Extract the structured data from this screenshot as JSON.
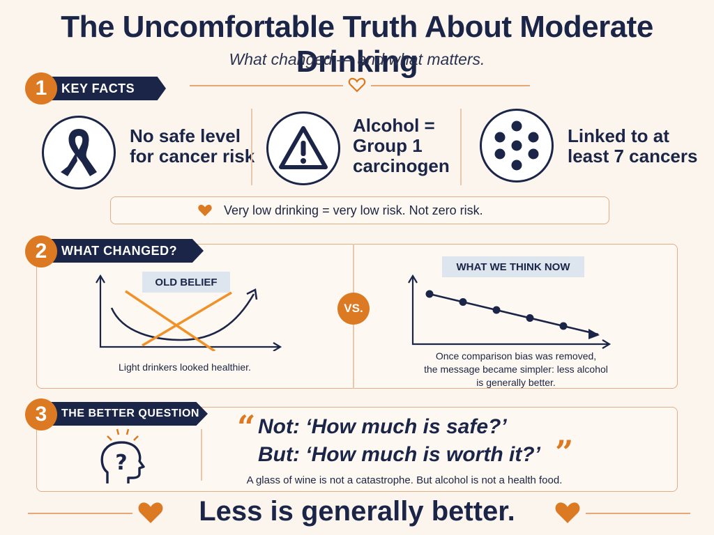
{
  "header": {
    "title": "The Uncomfortable Truth About Moderate Drinking",
    "subtitle": "What changed — and what matters."
  },
  "sections": [
    {
      "number": "1",
      "label": "KEY FACTS"
    },
    {
      "number": "2",
      "label": "WHAT CHANGED?"
    },
    {
      "number": "3",
      "label": "THE BETTER QUESTION"
    }
  ],
  "key_facts": {
    "facts": [
      {
        "icon": "cancer-ribbon-icon",
        "lines": [
          "No safe level",
          "for cancer risk"
        ]
      },
      {
        "icon": "warning-triangle-icon",
        "lines": [
          "Alcohol =",
          "Group 1",
          "carcinogen"
        ]
      },
      {
        "icon": "dots-cluster-icon",
        "lines": [
          "Linked to at",
          "least 7 cancers"
        ]
      }
    ],
    "note": "Very low drinking = very low risk. Not zero risk."
  },
  "what_changed": {
    "old_label": "OLD BELIEF",
    "old_caption": "Light drinkers looked healthier.",
    "vs": "VS.",
    "new_label": "WHAT WE THINK NOW",
    "new_caption": [
      "Once comparison bias was removed,",
      "the message became simpler: less alcohol",
      "is generally better."
    ]
  },
  "better_question": {
    "line1": "Not:  ‘How much is safe?’",
    "line2": "But:  ‘How much is worth it?’",
    "open_quote": "“",
    "close_quote": "”",
    "caption": "A glass of wine is not a catastrophe. But alcohol is not a health food."
  },
  "closing": "Less is generally better.",
  "colors": {
    "navy": "#1b2547",
    "orange": "#db7a22",
    "cream": "#fbf5ee"
  }
}
